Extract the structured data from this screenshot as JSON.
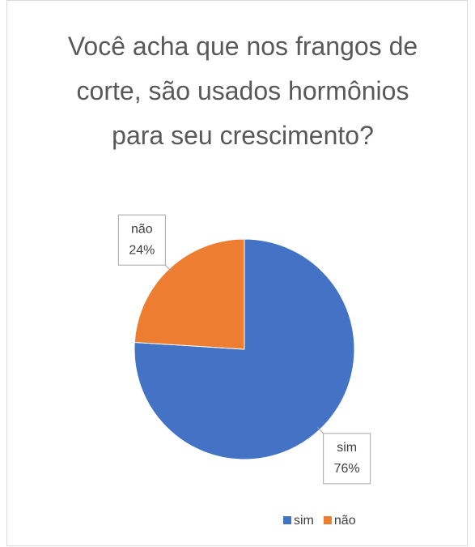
{
  "chart_data": {
    "type": "pie",
    "title": "Você acha que nos frangos de corte, são usados hormônios para seu crescimento?",
    "categories": [
      "sim",
      "não"
    ],
    "values": [
      76,
      24
    ],
    "value_labels": [
      "76%",
      "24%"
    ],
    "colors": [
      "#4472c4",
      "#ed7d31"
    ],
    "legend": "bottom"
  }
}
